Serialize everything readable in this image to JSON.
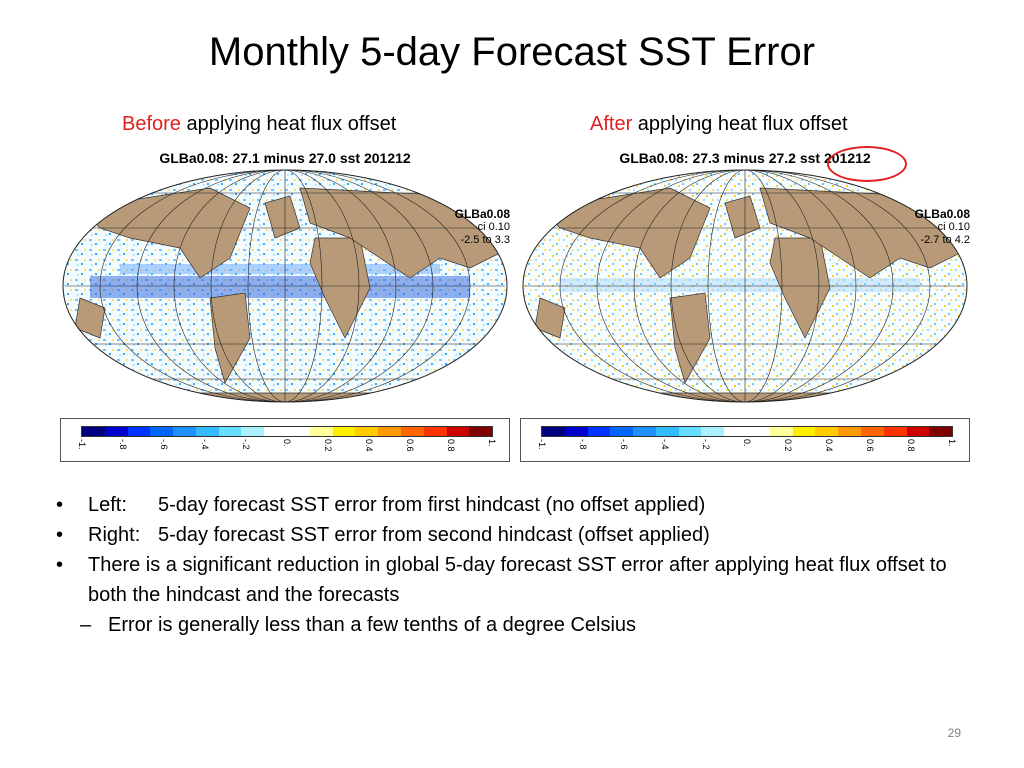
{
  "slide": {
    "title": "Monthly 5-day Forecast SST Error",
    "page_number": "29"
  },
  "left_panel": {
    "caption_highlight": "Before",
    "caption_rest": " applying heat flux offset",
    "map_header": "GLBa0.08: 27.1 minus 27.0 sst 201212",
    "side_title": "GLBa0.08",
    "side_ci": "ci 0.10",
    "side_range": "-2.5 to 3.3"
  },
  "right_panel": {
    "caption_highlight": "After",
    "caption_rest": " applying heat flux offset",
    "map_header": "GLBa0.08: 27.3 minus 27.2 sst 201212",
    "side_title": "GLBa0.08",
    "side_ci": "ci 0.10",
    "side_range": "-2.7 to 4.2"
  },
  "colorbar": {
    "tick_labels": [
      "-1.",
      "-.8",
      "-.6",
      "-.4",
      "-.2",
      "0.",
      "0.2",
      "0.4",
      "0.6",
      "0.8",
      "1."
    ],
    "colors": [
      "#00007f",
      "#0000cc",
      "#0033ff",
      "#0066ff",
      "#1e90ff",
      "#33bbff",
      "#66ddff",
      "#aaf0ff",
      "#ffffff",
      "#ffffff",
      "#ffff99",
      "#ffee00",
      "#ffcc00",
      "#ff9900",
      "#ff6600",
      "#ff3300",
      "#cc0000",
      "#7f0000"
    ]
  },
  "bullets": [
    {
      "label": "Left:",
      "text": "5-day forecast SST error from first hindcast (no offset applied)"
    },
    {
      "label": "Right:",
      "text": "5-day forecast SST error from second hindcast (offset applied)"
    },
    {
      "label": "",
      "text": "There is a significant reduction in global 5-day forecast SST error after applying heat flux offset to both the hindcast and the forecasts"
    }
  ],
  "sub_bullet": {
    "text": "Error is generally less than a few tenths of a degree Celsius"
  },
  "colors": {
    "accent_red": "#e02020",
    "land": "#b89a78"
  }
}
